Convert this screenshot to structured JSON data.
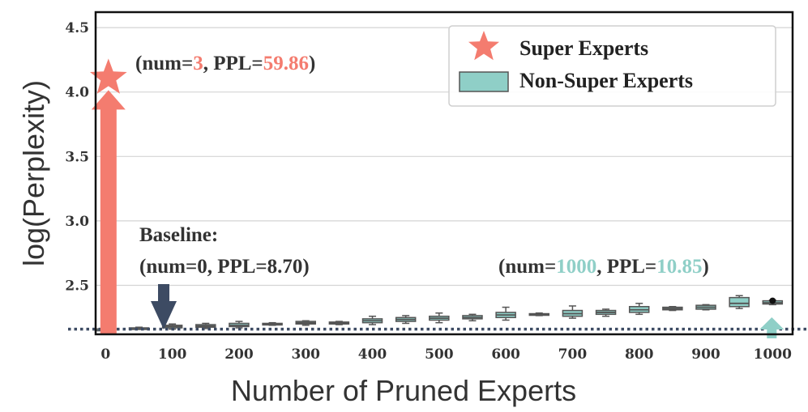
{
  "colors": {
    "super": "#f47c6f",
    "non_super_fill": "#8fcfc7",
    "box_edge": "#555555",
    "baseline": "#3d4b63",
    "grid": "#d4d4d4"
  },
  "annotations": {
    "super": {
      "pre": "(num=",
      "num": "3",
      "mid": ", PPL=",
      "ppl": "59.86",
      "post": ")"
    },
    "baseline_title": "Baseline:",
    "baseline_text": "(num=0, PPL=8.70)",
    "end": {
      "pre": "(num=",
      "num": "1000",
      "mid": ", PPL=",
      "ppl": "10.85",
      "post": ")"
    }
  },
  "chart_data": {
    "type": "box",
    "xlabel": "Number of Pruned Experts",
    "ylabel": "log(Perplexity)",
    "xticks": [
      "0",
      "100",
      "200",
      "300",
      "400",
      "500",
      "600",
      "700",
      "800",
      "900",
      "1000"
    ],
    "yticks": [
      "2.5",
      "3.0",
      "3.5",
      "4.0",
      "4.5"
    ],
    "xlim": [
      -15,
      1030
    ],
    "ylim": [
      2.12,
      4.62
    ],
    "baseline": {
      "num": 0,
      "ppl": 8.7,
      "log_ppl": 2.16
    },
    "legend": {
      "position": "top-right",
      "entries": [
        {
          "label": "Super Experts",
          "marker": "star"
        },
        {
          "label": "Non-Super Experts",
          "marker": "box"
        }
      ]
    },
    "super_experts": {
      "num": 3,
      "ppl": 59.86,
      "log_ppl": 4.09
    },
    "series": [
      {
        "name": "Non-Super Experts",
        "boxes": [
          {
            "x": 0,
            "q1": 2.16,
            "median": 2.16,
            "q3": 2.16,
            "whislo": 2.16,
            "whishi": 2.16
          },
          {
            "x": 50,
            "q1": 2.163,
            "median": 2.167,
            "q3": 2.17,
            "whislo": 2.16,
            "whishi": 2.175
          },
          {
            "x": 100,
            "q1": 2.17,
            "median": 2.18,
            "q3": 2.19,
            "whislo": 2.16,
            "whishi": 2.2
          },
          {
            "x": 150,
            "q1": 2.175,
            "median": 2.185,
            "q3": 2.195,
            "whislo": 2.165,
            "whishi": 2.205
          },
          {
            "x": 200,
            "q1": 2.18,
            "median": 2.19,
            "q3": 2.205,
            "whislo": 2.17,
            "whishi": 2.22
          },
          {
            "x": 250,
            "q1": 2.195,
            "median": 2.2,
            "q3": 2.205,
            "whislo": 2.19,
            "whishi": 2.21
          },
          {
            "x": 300,
            "q1": 2.2,
            "median": 2.21,
            "q3": 2.22,
            "whislo": 2.19,
            "whishi": 2.225
          },
          {
            "x": 350,
            "q1": 2.2,
            "median": 2.21,
            "q3": 2.215,
            "whislo": 2.195,
            "whishi": 2.22
          },
          {
            "x": 400,
            "q1": 2.21,
            "median": 2.225,
            "q3": 2.24,
            "whislo": 2.195,
            "whishi": 2.26
          },
          {
            "x": 450,
            "q1": 2.22,
            "median": 2.235,
            "q3": 2.25,
            "whislo": 2.205,
            "whishi": 2.265
          },
          {
            "x": 500,
            "q1": 2.23,
            "median": 2.245,
            "q3": 2.26,
            "whislo": 2.21,
            "whishi": 2.285
          },
          {
            "x": 550,
            "q1": 2.24,
            "median": 2.25,
            "q3": 2.265,
            "whislo": 2.225,
            "whishi": 2.275
          },
          {
            "x": 600,
            "q1": 2.25,
            "median": 2.27,
            "q3": 2.29,
            "whislo": 2.23,
            "whishi": 2.33
          },
          {
            "x": 650,
            "q1": 2.27,
            "median": 2.275,
            "q3": 2.28,
            "whislo": 2.265,
            "whishi": 2.285
          },
          {
            "x": 700,
            "q1": 2.26,
            "median": 2.28,
            "q3": 2.305,
            "whislo": 2.245,
            "whishi": 2.34
          },
          {
            "x": 750,
            "q1": 2.275,
            "median": 2.29,
            "q3": 2.305,
            "whislo": 2.26,
            "whishi": 2.315
          },
          {
            "x": 800,
            "q1": 2.29,
            "median": 2.31,
            "q3": 2.335,
            "whislo": 2.275,
            "whishi": 2.36
          },
          {
            "x": 850,
            "q1": 2.31,
            "median": 2.32,
            "q3": 2.33,
            "whislo": 2.305,
            "whishi": 2.335
          },
          {
            "x": 900,
            "q1": 2.315,
            "median": 2.33,
            "q3": 2.345,
            "whislo": 2.31,
            "whishi": 2.35
          },
          {
            "x": 950,
            "q1": 2.335,
            "median": 2.36,
            "q3": 2.405,
            "whislo": 2.32,
            "whishi": 2.42
          },
          {
            "x": 1000,
            "q1": 2.355,
            "median": 2.365,
            "q3": 2.38,
            "whislo": 2.35,
            "whishi": 2.385
          }
        ],
        "endpoint": {
          "x": 1000,
          "log_ppl": 2.38,
          "ppl": 10.85
        }
      }
    ]
  }
}
